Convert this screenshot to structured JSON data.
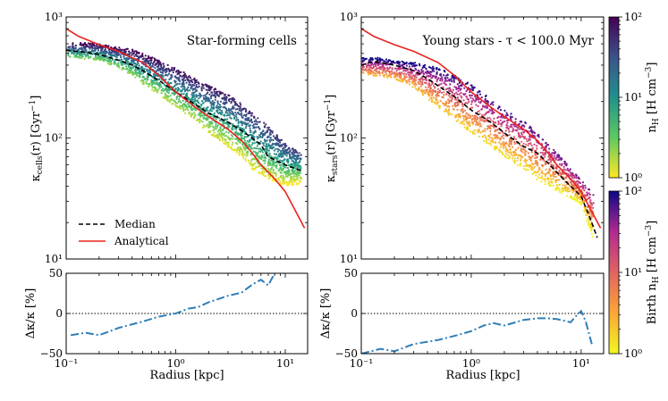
{
  "chart_data": [
    {
      "panel": "top-left",
      "type": "scatter",
      "annotation": "Star-forming cells",
      "ylabel": "κ_cells(r) [Gyr⁻¹]",
      "xlabel": "",
      "xscale": "log",
      "yscale": "log",
      "xlim": [
        0.1,
        16
      ],
      "ylim": [
        10,
        1000
      ],
      "xtick_labels": [
        "10⁻¹",
        "10⁰",
        "10¹"
      ],
      "ytick_labels": [
        "10¹",
        "10²",
        "10³"
      ],
      "colormap": "viridis",
      "legend": {
        "placement": "lower-left",
        "entries": [
          "Median",
          "Analytical"
        ]
      },
      "scatter_band": [
        {
          "x": 0.1,
          "lo": 470,
          "hi": 620
        },
        {
          "x": 0.15,
          "lo": 450,
          "hi": 610
        },
        {
          "x": 0.2,
          "lo": 440,
          "hi": 600
        },
        {
          "x": 0.3,
          "lo": 380,
          "hi": 560
        },
        {
          "x": 0.4,
          "lo": 330,
          "hi": 540
        },
        {
          "x": 0.5,
          "lo": 280,
          "hi": 500
        },
        {
          "x": 0.7,
          "lo": 230,
          "hi": 440
        },
        {
          "x": 1.0,
          "lo": 180,
          "hi": 380
        },
        {
          "x": 1.5,
          "lo": 140,
          "hi": 310
        },
        {
          "x": 2.0,
          "lo": 110,
          "hi": 270
        },
        {
          "x": 3.0,
          "lo": 85,
          "hi": 230
        },
        {
          "x": 4.0,
          "lo": 70,
          "hi": 190
        },
        {
          "x": 5.0,
          "lo": 55,
          "hi": 160
        },
        {
          "x": 7.0,
          "lo": 45,
          "hi": 125
        },
        {
          "x": 10.0,
          "lo": 40,
          "hi": 90
        },
        {
          "x": 14.0,
          "lo": 42,
          "hi": 75
        }
      ],
      "series": [
        {
          "name": "Median",
          "style": "dashed",
          "color": "#000000",
          "x": [
            0.1,
            0.15,
            0.2,
            0.3,
            0.4,
            0.5,
            0.7,
            1.0,
            1.5,
            2.0,
            3.0,
            4.0,
            5.0,
            6.0,
            7.0,
            10.0,
            13.0,
            14.0
          ],
          "y": [
            530,
            510,
            490,
            440,
            400,
            360,
            300,
            240,
            190,
            160,
            135,
            115,
            100,
            88,
            70,
            60,
            55,
            54
          ]
        },
        {
          "name": "Analytical",
          "style": "solid",
          "color": "#e8231f",
          "x": [
            0.1,
            0.13,
            0.2,
            0.3,
            0.5,
            0.7,
            1.0,
            1.5,
            2.0,
            3.0,
            4.0,
            5.0,
            6.0,
            8.0,
            10.0,
            15.0
          ],
          "y": [
            800,
            690,
            590,
            520,
            420,
            330,
            240,
            180,
            150,
            118,
            95,
            75,
            60,
            46,
            36,
            18
          ]
        }
      ]
    },
    {
      "panel": "bottom-left",
      "type": "line",
      "ylabel": "Δκ/κ [%]",
      "xlabel": "Radius [kpc]",
      "xscale": "log",
      "xlim": [
        0.1,
        16
      ],
      "ylim": [
        -50,
        50
      ],
      "xtick_labels": [
        "10⁻¹",
        "10⁰",
        "10¹"
      ],
      "ytick_labels": [
        "−50",
        "0",
        "50"
      ],
      "reference_line": 0,
      "series": [
        {
          "name": "Δκ/κ",
          "style": "dashdot",
          "color": "#2e7eb8",
          "x": [
            0.11,
            0.15,
            0.2,
            0.3,
            0.5,
            0.7,
            1.0,
            1.3,
            1.6,
            2.0,
            3.0,
            4.0,
            5.0,
            6.0,
            7.0,
            8.0
          ],
          "y": [
            -27,
            -24,
            -27,
            -18,
            -10,
            -4,
            0,
            6,
            8,
            14,
            22,
            26,
            36,
            42,
            35,
            50
          ]
        }
      ]
    },
    {
      "panel": "top-right",
      "type": "scatter",
      "annotation": "Young stars - τ < 100.0 Myr",
      "ylabel": "κ_stars(r) [Gyr⁻¹]",
      "xlabel": "",
      "xscale": "log",
      "yscale": "log",
      "xlim": [
        0.1,
        16
      ],
      "ylim": [
        10,
        1000
      ],
      "xtick_labels": [
        "10⁻¹",
        "10⁰",
        "10¹"
      ],
      "ytick_labels": [
        "10¹",
        "10²",
        "10³"
      ],
      "colormap": "plasma",
      "scatter_band": [
        {
          "x": 0.1,
          "lo": 340,
          "hi": 460
        },
        {
          "x": 0.15,
          "lo": 320,
          "hi": 460
        },
        {
          "x": 0.2,
          "lo": 310,
          "hi": 440
        },
        {
          "x": 0.3,
          "lo": 260,
          "hi": 420
        },
        {
          "x": 0.4,
          "lo": 210,
          "hi": 400
        },
        {
          "x": 0.5,
          "lo": 180,
          "hi": 380
        },
        {
          "x": 0.7,
          "lo": 140,
          "hi": 330
        },
        {
          "x": 1.0,
          "lo": 110,
          "hi": 280
        },
        {
          "x": 1.5,
          "lo": 85,
          "hi": 210
        },
        {
          "x": 2.0,
          "lo": 70,
          "hi": 170
        },
        {
          "x": 3.0,
          "lo": 55,
          "hi": 140
        },
        {
          "x": 4.0,
          "lo": 45,
          "hi": 110
        },
        {
          "x": 5.0,
          "lo": 40,
          "hi": 90
        },
        {
          "x": 7.0,
          "lo": 34,
          "hi": 65
        },
        {
          "x": 10.0,
          "lo": 28,
          "hi": 45
        },
        {
          "x": 13.0,
          "lo": 14,
          "hi": 34
        }
      ],
      "series": [
        {
          "name": "Median",
          "style": "dashed",
          "color": "#000000",
          "x": [
            0.1,
            0.13,
            0.2,
            0.3,
            0.4,
            0.5,
            0.7,
            1.0,
            1.5,
            2.0,
            3.0,
            4.0,
            5.0,
            7.0,
            10.0,
            12.0,
            14.0
          ],
          "y": [
            400,
            430,
            400,
            360,
            310,
            270,
            220,
            170,
            135,
            110,
            85,
            75,
            62,
            45,
            33,
            22,
            15
          ]
        },
        {
          "name": "Analytical",
          "style": "solid",
          "color": "#e8231f",
          "x": [
            0.1,
            0.13,
            0.2,
            0.3,
            0.5,
            0.7,
            1.0,
            1.5,
            2.0,
            3.0,
            4.0,
            5.0,
            6.0,
            8.0,
            10.0,
            15.0
          ],
          "y": [
            800,
            690,
            590,
            520,
            420,
            330,
            240,
            180,
            150,
            118,
            95,
            75,
            60,
            46,
            36,
            18
          ]
        }
      ]
    },
    {
      "panel": "bottom-right",
      "type": "line",
      "ylabel": "Δκ/κ [%]",
      "xlabel": "Radius [kpc]",
      "xscale": "log",
      "xlim": [
        0.1,
        16
      ],
      "ylim": [
        -50,
        50
      ],
      "xtick_labels": [
        "10⁻¹",
        "10⁰",
        "10¹"
      ],
      "ytick_labels": [
        "−50",
        "0",
        "50"
      ],
      "reference_line": 0,
      "series": [
        {
          "name": "Δκ/κ",
          "style": "dashdot",
          "color": "#2e7eb8",
          "x": [
            0.1,
            0.15,
            0.2,
            0.3,
            0.5,
            0.7,
            1.0,
            1.3,
            1.6,
            2.0,
            3.0,
            4.0,
            5.0,
            6.0,
            7.0,
            8.0,
            9.0,
            10.0,
            11.0,
            12.5
          ],
          "y": [
            -50,
            -44,
            -47,
            -38,
            -33,
            -28,
            -22,
            -15,
            -12,
            -15,
            -8,
            -6,
            -6,
            -7,
            -9,
            -11,
            -3,
            3,
            -10,
            -38
          ]
        }
      ]
    }
  ],
  "colorbars": [
    {
      "label": "n_H [H cm⁻³]",
      "colormap": "viridis",
      "tick_labels": [
        "10⁰",
        "10¹",
        "10²"
      ],
      "range": [
        1,
        100
      ]
    },
    {
      "label": "Birth n_H [H cm⁻³]",
      "colormap": "plasma",
      "tick_labels": [
        "10⁰",
        "10¹",
        "10²"
      ],
      "range": [
        1,
        100
      ]
    }
  ]
}
